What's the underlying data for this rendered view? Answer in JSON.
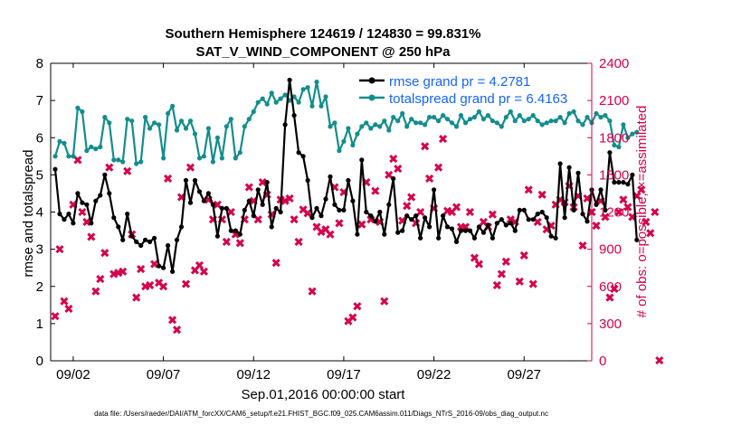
{
  "chart_data": {
    "type": "line",
    "title": "Southern Hemisphere 124619 / 124830 = 99.831%",
    "subtitle": "SAT_V_WIND_COMPONENT @ 250 hPa",
    "xlabel": "Sep.01,2016 00:00:00 start",
    "ylabel_left": "rmse and totalspread",
    "ylabel_right": "# of obs: o=possible; ×=assimilated",
    "footnote": "data file: /Users/raeder/DAI/ATM_forcXX/CAM6_setup/f.e21.FHIST_BGC.f09_025.CAM6assim.011/Diags_NTrS_2016-09/obs_diag_output.nc",
    "x_tick_labels": [
      "09/02",
      "09/07",
      "09/12",
      "09/17",
      "09/22",
      "09/27"
    ],
    "x_tick_days": [
      2,
      7,
      12,
      17,
      22,
      27
    ],
    "x_range_days": [
      0.75,
      30.75
    ],
    "ylim_left": [
      0,
      8
    ],
    "yticks_left": [
      "0",
      "1",
      "2",
      "3",
      "4",
      "5",
      "6",
      "7",
      "8"
    ],
    "ylim_right": [
      0,
      2400
    ],
    "yticks_right": [
      "0",
      "300",
      "600",
      "900",
      "1200",
      "1500",
      "1800",
      "2100",
      "2400"
    ],
    "grid": false,
    "legend_position": "top-right",
    "colors": {
      "rmse": "#000000",
      "totalspread": "#138d8d",
      "obs": "#d6004c",
      "legend_text": "#1565ff"
    },
    "series": [
      {
        "name": "rmse grand pr = 4.2781",
        "axis": "left",
        "color": "#000000",
        "marker": "circle",
        "x_start_day": 1.0,
        "x_step_days": 0.25,
        "values": [
          5.15,
          3.95,
          3.8,
          3.95,
          3.7,
          4.5,
          4.25,
          4.2,
          3.7,
          4.3,
          4.45,
          5.0,
          4.5,
          3.85,
          3.6,
          3.25,
          3.95,
          3.35,
          3.2,
          3.1,
          3.25,
          3.2,
          3.3,
          2.55,
          2.5,
          3.1,
          2.4,
          3.25,
          3.6,
          4.85,
          4.25,
          4.85,
          4.55,
          4.3,
          4.5,
          4.2,
          3.35,
          4.1,
          4.1,
          3.5,
          3.5,
          3.4,
          4.05,
          4.3,
          3.9,
          4.6,
          4.2,
          4.8,
          3.6,
          4.1,
          4.0,
          6.35,
          7.55,
          6.6,
          5.6,
          5.5,
          4.85,
          3.85,
          4.1,
          3.9,
          4.35,
          4.95,
          4.2,
          4.05,
          4.05,
          4.85,
          4.3,
          3.4,
          5.4,
          4.0,
          3.9,
          3.75,
          4.0,
          3.4,
          4.2,
          4.9,
          3.45,
          3.5,
          3.9,
          3.8,
          3.9,
          3.3,
          3.85,
          3.6,
          4.6,
          3.3,
          3.9,
          3.6,
          3.55,
          3.2,
          3.5,
          3.5,
          3.5,
          3.3,
          3.6,
          3.45,
          3.65,
          3.3,
          3.7,
          3.8,
          3.65,
          3.7,
          3.5,
          4.05,
          4.05,
          3.8,
          3.8,
          3.95,
          4.0,
          3.85,
          3.35,
          3.3,
          5.3,
          3.85,
          5.2,
          4.05,
          5.05,
          3.95,
          3.75,
          4.6,
          4.2,
          4.6,
          4.05,
          5.6,
          4.8,
          4.8,
          4.8,
          4.75,
          5.0,
          3.25
        ]
      },
      {
        "name": "totalspread grand pr = 6.4163",
        "axis": "left",
        "color": "#138d8d",
        "marker": "circle",
        "x_start_day": 1.0,
        "x_step_days": 0.25,
        "values": [
          5.5,
          5.9,
          5.85,
          5.5,
          5.5,
          6.8,
          6.7,
          5.65,
          5.75,
          5.7,
          5.75,
          6.55,
          6.4,
          5.4,
          5.4,
          5.35,
          6.5,
          6.45,
          5.3,
          5.35,
          6.55,
          6.25,
          6.4,
          6.35,
          5.45,
          6.65,
          6.85,
          6.2,
          6.45,
          6.25,
          6.45,
          6.1,
          5.45,
          5.5,
          6.25,
          5.35,
          6.0,
          5.45,
          6.3,
          6.5,
          5.45,
          5.6,
          6.3,
          6.5,
          6.7,
          6.95,
          7.05,
          6.9,
          7.2,
          6.95,
          7.05,
          7.15,
          7.0,
          7.1,
          6.95,
          7.3,
          7.35,
          6.85,
          7.5,
          6.85,
          7.1,
          6.3,
          6.4,
          5.65,
          5.9,
          6.25,
          5.8,
          6.1,
          6.3,
          6.4,
          6.25,
          6.35,
          6.3,
          6.45,
          6.2,
          6.55,
          6.45,
          6.65,
          6.3,
          6.5,
          6.4,
          6.4,
          6.35,
          6.55,
          6.55,
          6.45,
          6.6,
          6.5,
          6.4,
          6.3,
          6.6,
          6.4,
          6.5,
          6.55,
          6.7,
          6.5,
          6.6,
          6.45,
          6.4,
          6.3,
          6.55,
          6.7,
          6.45,
          6.6,
          6.45,
          6.5,
          6.6,
          6.45,
          6.35,
          6.4,
          6.45,
          6.45,
          6.55,
          6.4,
          6.65,
          6.7,
          6.45,
          6.35,
          6.55,
          6.4,
          6.65,
          6.55,
          6.6,
          6.45,
          5.8,
          5.75,
          6.35,
          6.0,
          6.1,
          6.15
        ]
      },
      {
        "name": "# of obs assimilated",
        "axis": "right",
        "color": "#d6004c",
        "marker": "cross",
        "x_start_day": 1.0,
        "x_step_days": 0.25,
        "values": [
          360,
          900,
          480,
          420,
          1260,
          1620,
          1200,
          1120,
          1000,
          560,
          660,
          870,
          1560,
          700,
          710,
          720,
          1530,
          1020,
          510,
          740,
          600,
          610,
          780,
          630,
          600,
          1470,
          330,
          250,
          1320,
          620,
          1560,
          730,
          770,
          720,
          1300,
          1140,
          1260,
          1140,
          960,
          1200,
          1020,
          950,
          1140,
          1400,
          1290,
          1140,
          1440,
          1340,
          1180,
          790,
          1300,
          1290,
          1310,
          1140,
          960,
          1220,
          1190,
          560,
          1080,
          1040,
          1060,
          1020,
          1400,
          1110,
          1360,
          320,
          350,
          440,
          1100,
          1440,
          1140,
          1370,
          1120,
          480,
          1500,
          1630,
          1550,
          1130,
          1250,
          1320,
          1110,
          1200,
          1730,
          1470,
          1230,
          1560,
          1790,
          1210,
          1200,
          1240,
          1080,
          1080,
          1200,
          830,
          780,
          1120,
          1080,
          1180,
          610,
          700,
          800,
          1140,
          1120,
          640,
          850,
          1380,
          620,
          1120,
          1340,
          1060,
          1090,
          1260,
          1300,
          1280,
          1410,
          1240,
          1330,
          930,
          1310,
          1200,
          1090,
          1290,
          1160,
          510,
          580,
          1200,
          1300,
          1240,
          1160,
          1330,
          1380,
          1120,
          1030,
          1200,
          3
        ]
      }
    ]
  }
}
